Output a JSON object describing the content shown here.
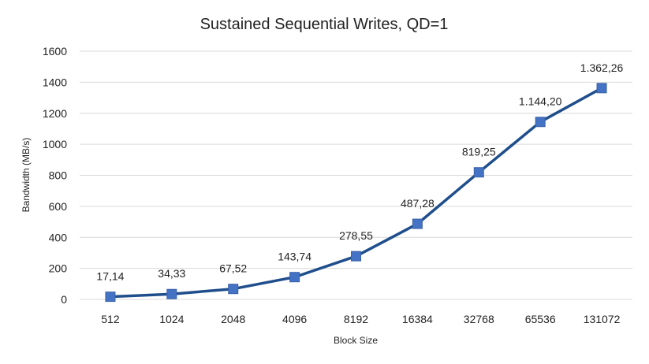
{
  "chart_data": {
    "type": "line",
    "title": "Sustained Sequential Writes, QD=1",
    "xlabel": "Block Size",
    "ylabel": "Bandwidth (MB/s)",
    "categories": [
      "512",
      "1024",
      "2048",
      "4096",
      "8192",
      "16384",
      "32768",
      "65536",
      "131072"
    ],
    "series": [
      {
        "values": [
          17.14,
          34.33,
          67.52,
          143.74,
          278.55,
          487.28,
          819.25,
          1144.2,
          1362.26
        ],
        "data_labels": [
          "17,14",
          "34,33",
          "67,52",
          "143,74",
          "278,55",
          "487,28",
          "819,25",
          "1.144,20",
          "1.362,26"
        ],
        "line_color": "#1f4e8c",
        "marker_color": "#4472c4",
        "marker": "square"
      }
    ],
    "ylim": [
      0,
      1600
    ],
    "yticks": [
      0,
      200,
      400,
      600,
      800,
      1000,
      1200,
      1400,
      1600
    ],
    "grid": true,
    "legend": "none"
  }
}
